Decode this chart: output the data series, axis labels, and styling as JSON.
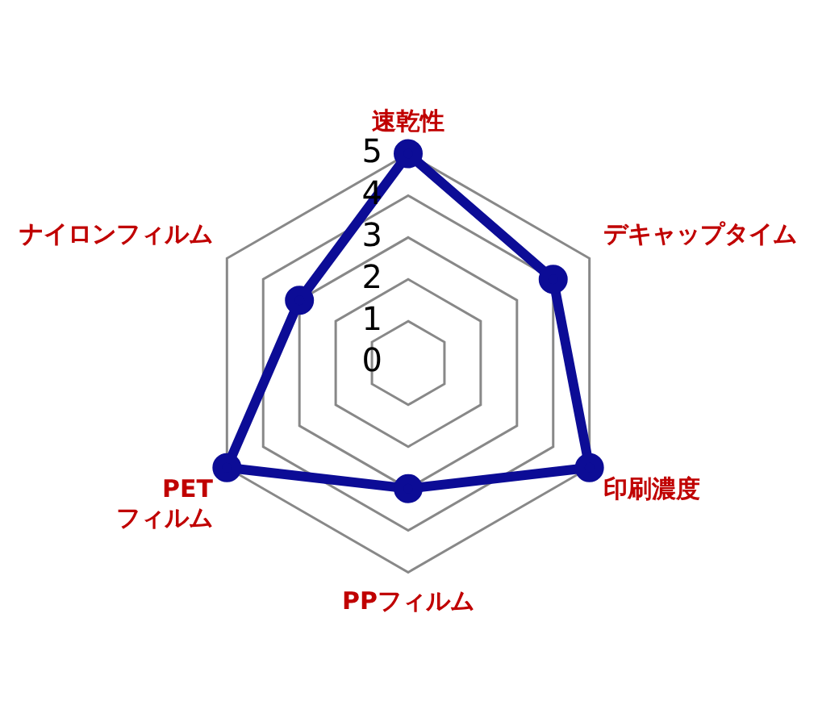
{
  "chart_data": {
    "type": "radar",
    "categories": [
      "速乾性",
      "デキャップタイム",
      "印刷濃度",
      "PPフィルム",
      "PET\nフィルム",
      "ナイロンフィルム"
    ],
    "series": [
      {
        "color": "#0c0c96",
        "values": [
          5,
          4,
          5,
          3,
          5,
          3
        ]
      }
    ],
    "ylim": [
      0,
      5
    ],
    "yticks": [
      0,
      1,
      2,
      3,
      4,
      5
    ],
    "grid": true,
    "legend": false,
    "marker": "circle"
  }
}
